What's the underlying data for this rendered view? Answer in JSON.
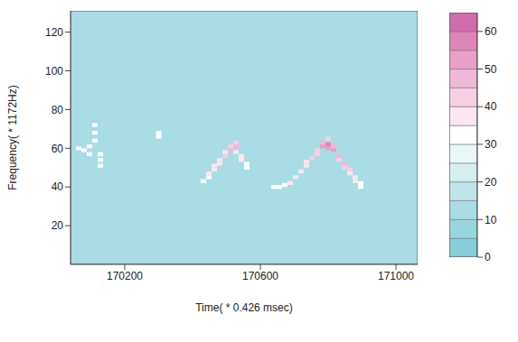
{
  "chart_data": {
    "type": "heatmap",
    "x_label": "Time( * 0.426 msec)",
    "y_label": "Frequency( * 1172Hz)",
    "xlim": [
      170040,
      171064
    ],
    "xticks": [
      170200,
      170600,
      171000
    ],
    "ylim": [
      0,
      131
    ],
    "yticks": [
      20,
      40,
      60,
      80,
      100,
      120
    ],
    "cell_width": 16,
    "cell_height": 2,
    "default_value": 12,
    "cells": [
      [
        170064,
        60,
        34
      ],
      [
        170080,
        59,
        34
      ],
      [
        170096,
        57,
        33
      ],
      [
        170096,
        61,
        32
      ],
      [
        170112,
        64,
        34
      ],
      [
        170112,
        68,
        33
      ],
      [
        170112,
        72,
        32
      ],
      [
        170128,
        54,
        34
      ],
      [
        170128,
        57,
        33
      ],
      [
        170128,
        51,
        32
      ],
      [
        170300,
        66,
        33
      ],
      [
        170300,
        68,
        32
      ],
      [
        170432,
        43,
        33
      ],
      [
        170448,
        45,
        34
      ],
      [
        170448,
        47,
        36
      ],
      [
        170464,
        49,
        36
      ],
      [
        170464,
        51,
        37
      ],
      [
        170480,
        52,
        38
      ],
      [
        170480,
        54,
        37
      ],
      [
        170496,
        56,
        40
      ],
      [
        170496,
        58,
        38
      ],
      [
        170512,
        59,
        45
      ],
      [
        170512,
        61,
        42
      ],
      [
        170528,
        61,
        48
      ],
      [
        170528,
        63,
        40
      ],
      [
        170528,
        58,
        38
      ],
      [
        170544,
        56,
        38
      ],
      [
        170544,
        54,
        36
      ],
      [
        170560,
        52,
        34
      ],
      [
        170560,
        50,
        33
      ],
      [
        170640,
        40,
        33
      ],
      [
        170656,
        40,
        34
      ],
      [
        170672,
        41,
        34
      ],
      [
        170688,
        42,
        35
      ],
      [
        170704,
        45,
        36
      ],
      [
        170720,
        48,
        37
      ],
      [
        170736,
        51,
        38
      ],
      [
        170736,
        53,
        37
      ],
      [
        170752,
        55,
        40
      ],
      [
        170768,
        57,
        44
      ],
      [
        170768,
        59,
        42
      ],
      [
        170784,
        61,
        50
      ],
      [
        170784,
        63,
        45
      ],
      [
        170800,
        62,
        55
      ],
      [
        170800,
        60,
        52
      ],
      [
        170800,
        65,
        40
      ],
      [
        170816,
        59,
        50
      ],
      [
        170816,
        61,
        45
      ],
      [
        170832,
        56,
        46
      ],
      [
        170832,
        54,
        42
      ],
      [
        170848,
        52,
        48
      ],
      [
        170848,
        50,
        44
      ],
      [
        170864,
        49,
        40
      ],
      [
        170864,
        47,
        38
      ],
      [
        170880,
        45,
        36
      ],
      [
        170880,
        43,
        35
      ],
      [
        170896,
        42,
        33
      ],
      [
        170896,
        40,
        32
      ]
    ],
    "colorbar_lim": [
      0,
      65
    ],
    "colorbar_ticks": [
      0,
      10,
      20,
      30,
      40,
      50,
      60
    ],
    "colorbar_breaks": [
      0,
      5,
      10,
      15,
      20,
      25,
      30,
      35,
      40,
      45,
      50,
      55,
      60,
      65
    ]
  }
}
